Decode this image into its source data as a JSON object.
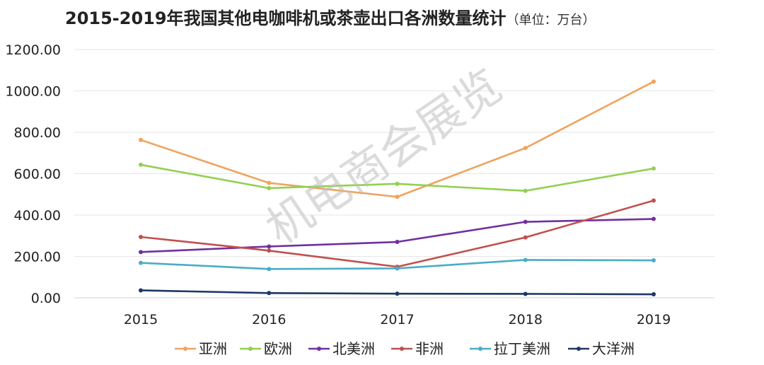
{
  "chart_data": {
    "type": "line",
    "title": "2015-2019年我国其他电咖啡机或茶壶出口各洲数量统计",
    "unit": "（单位：万台）",
    "watermark": "机电商会展览",
    "x": [
      "2015",
      "2016",
      "2017",
      "2018",
      "2019"
    ],
    "ylim": [
      0,
      1200
    ],
    "yticks": [
      0,
      200,
      400,
      600,
      800,
      1000,
      1200
    ],
    "yticklabels": [
      "0.00",
      "200.00",
      "400.00",
      "600.00",
      "800.00",
      "1000.00",
      "1200.00"
    ],
    "grid": true,
    "legend": "bottom",
    "series": [
      {
        "name": "亚洲",
        "color": "#F0A35E",
        "values": [
          763,
          555,
          488,
          724,
          1045
        ]
      },
      {
        "name": "欧洲",
        "color": "#92D050",
        "values": [
          643,
          530,
          551,
          517,
          625
        ]
      },
      {
        "name": "北美洲",
        "color": "#7030A0",
        "values": [
          221,
          248,
          270,
          367,
          381
        ]
      },
      {
        "name": "非洲",
        "color": "#C0504D",
        "values": [
          294,
          228,
          150,
          292,
          470
        ]
      },
      {
        "name": "拉丁美洲",
        "color": "#4BACC6",
        "values": [
          169,
          139,
          142,
          183,
          181
        ]
      },
      {
        "name": "大洋洲",
        "color": "#1F3864",
        "values": [
          36,
          23,
          20,
          19,
          17
        ]
      }
    ]
  }
}
